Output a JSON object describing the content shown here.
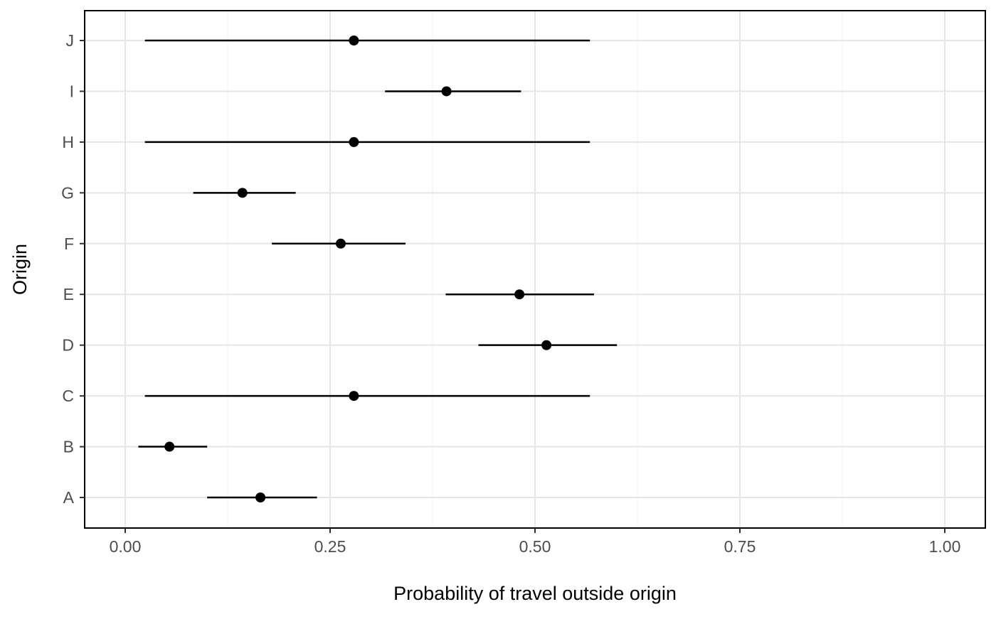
{
  "chart_data": {
    "type": "dot-interval",
    "title": "",
    "xlabel": "Probability of travel outside origin",
    "ylabel": "Origin",
    "xlim": [
      -0.05,
      1.05
    ],
    "xticks": [
      0.0,
      0.25,
      0.5,
      0.75,
      1.0
    ],
    "xtick_labels": [
      "0.00",
      "0.25",
      "0.50",
      "0.75",
      "1.00"
    ],
    "grid": true,
    "categories": [
      "A",
      "B",
      "C",
      "D",
      "E",
      "F",
      "G",
      "H",
      "I",
      "J"
    ],
    "series": [
      {
        "points": [
          {
            "category": "A",
            "estimate": 0.165,
            "lower": 0.1,
            "upper": 0.234
          },
          {
            "category": "B",
            "estimate": 0.054,
            "lower": 0.016,
            "upper": 0.1
          },
          {
            "category": "C",
            "estimate": 0.279,
            "lower": 0.024,
            "upper": 0.567
          },
          {
            "category": "D",
            "estimate": 0.514,
            "lower": 0.431,
            "upper": 0.6
          },
          {
            "category": "E",
            "estimate": 0.481,
            "lower": 0.391,
            "upper": 0.572
          },
          {
            "category": "F",
            "estimate": 0.263,
            "lower": 0.179,
            "upper": 0.342
          },
          {
            "category": "G",
            "estimate": 0.143,
            "lower": 0.083,
            "upper": 0.208
          },
          {
            "category": "H",
            "estimate": 0.279,
            "lower": 0.024,
            "upper": 0.567
          },
          {
            "category": "I",
            "estimate": 0.392,
            "lower": 0.317,
            "upper": 0.483
          },
          {
            "category": "J",
            "estimate": 0.279,
            "lower": 0.024,
            "upper": 0.567
          }
        ]
      }
    ],
    "colors": {
      "mark": "#000000",
      "grid_major": "#e5e5e5",
      "grid_minor": "#f0f0f0",
      "panel_border": "#000000",
      "tick_text": "#4d4d4d",
      "axis_title": "#000000"
    }
  }
}
